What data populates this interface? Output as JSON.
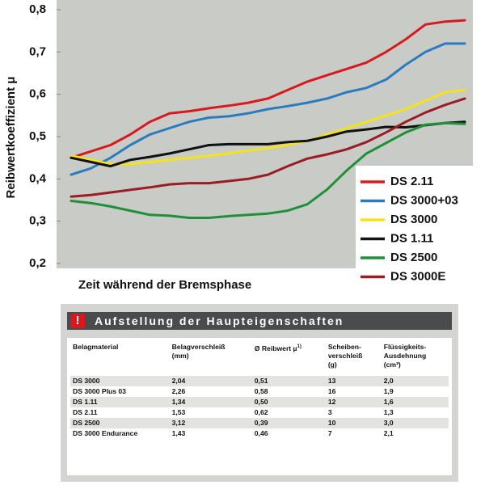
{
  "chart_data": {
    "type": "line",
    "ylabel": "Reibwertkoeffizient μ",
    "xlabel": "Zeit während der Bremsphase",
    "ylim": [
      0.2,
      0.8
    ],
    "yticks": [
      {
        "value": 0.2,
        "label": "0,2"
      },
      {
        "value": 0.3,
        "label": "0,3"
      },
      {
        "value": 0.4,
        "label": "0,4"
      },
      {
        "value": 0.5,
        "label": "0,5"
      },
      {
        "value": 0.6,
        "label": "0,6"
      },
      {
        "value": 0.7,
        "label": "0,7"
      },
      {
        "value": 0.8,
        "label": "0,8"
      }
    ],
    "grid": false,
    "legend": "lower right",
    "series": [
      {
        "name": "DS 2.11",
        "color": "#d8191f",
        "values": [
          0.45,
          0.465,
          0.48,
          0.505,
          0.535,
          0.555,
          0.56,
          0.567,
          0.573,
          0.58,
          0.59,
          0.61,
          0.63,
          0.645,
          0.66,
          0.675,
          0.7,
          0.73,
          0.765,
          0.772,
          0.775
        ]
      },
      {
        "name": "DS 3000+03",
        "color": "#2a7bc0",
        "values": [
          0.41,
          0.425,
          0.45,
          0.48,
          0.505,
          0.52,
          0.535,
          0.545,
          0.548,
          0.555,
          0.565,
          0.572,
          0.58,
          0.59,
          0.605,
          0.615,
          0.635,
          0.67,
          0.7,
          0.72,
          0.72
        ]
      },
      {
        "name": "DS 3000",
        "color": "#f5e31a",
        "values": [
          0.455,
          0.445,
          0.435,
          0.435,
          0.44,
          0.445,
          0.45,
          0.455,
          0.46,
          0.467,
          0.473,
          0.48,
          0.49,
          0.505,
          0.52,
          0.535,
          0.55,
          0.565,
          0.585,
          0.605,
          0.61
        ]
      },
      {
        "name": "DS 1.11",
        "color": "#111111",
        "values": [
          0.45,
          0.44,
          0.43,
          0.445,
          0.452,
          0.46,
          0.47,
          0.48,
          0.482,
          0.482,
          0.482,
          0.487,
          0.49,
          0.5,
          0.512,
          0.517,
          0.523,
          0.522,
          0.527,
          0.532,
          0.535
        ]
      },
      {
        "name": "DS 2500",
        "color": "#1e9138",
        "values": [
          0.348,
          0.343,
          0.335,
          0.325,
          0.315,
          0.313,
          0.308,
          0.308,
          0.312,
          0.315,
          0.318,
          0.325,
          0.34,
          0.375,
          0.42,
          0.46,
          0.485,
          0.51,
          0.528,
          0.532,
          0.53
        ]
      },
      {
        "name": "DS 3000E",
        "color": "#9b1c24",
        "values": [
          0.358,
          0.362,
          0.368,
          0.374,
          0.38,
          0.387,
          0.39,
          0.39,
          0.395,
          0.4,
          0.41,
          0.43,
          0.448,
          0.458,
          0.47,
          0.487,
          0.51,
          0.535,
          0.557,
          0.575,
          0.59
        ]
      }
    ]
  },
  "table": {
    "title": "Aufstellung der Haupteigenschaften",
    "header": [
      "Belagmaterial",
      "Belagverschleiß\n(mm)",
      "Ø Reibwert µ",
      "Scheiben-\nverschleiß\n(g)",
      "Flüssigkeits-\nAusdehnung\n(cm³)"
    ],
    "footnote_mark": "1)",
    "rows": [
      [
        "DS 3000",
        "2,04",
        "0,51",
        "13",
        "2,0"
      ],
      [
        "DS 3000 Plus 03",
        "2,26",
        "0,58",
        "16",
        "1,9"
      ],
      [
        "DS 1.11",
        "1,34",
        "0,50",
        "12",
        "1,6"
      ],
      [
        "DS 2.11",
        "1,53",
        "0,62",
        "3",
        "1,3"
      ],
      [
        "DS 2500",
        "3,12",
        "0,39",
        "10",
        "3,0"
      ],
      [
        "DS 3000 Endurance",
        "1,43",
        "0,46",
        "7",
        "2,1"
      ]
    ]
  }
}
